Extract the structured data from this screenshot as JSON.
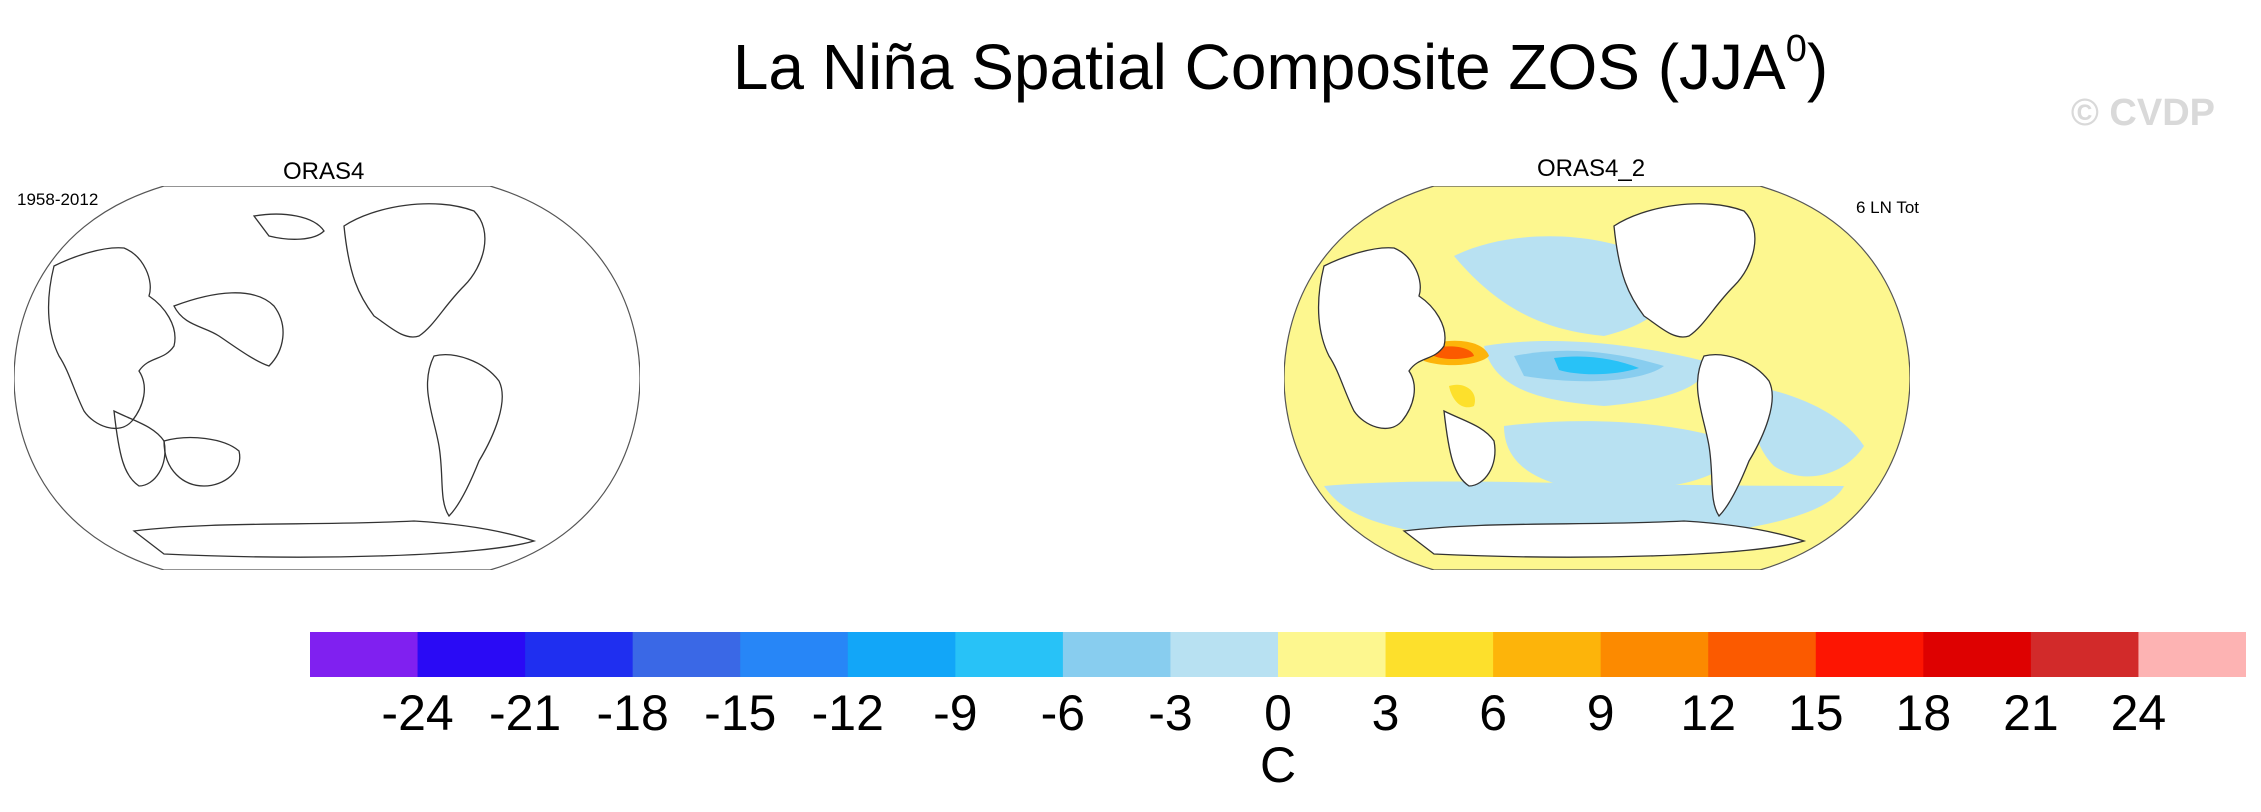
{
  "figure": {
    "title_main": "La Niña Spatial Composite ZOS (JJA",
    "title_sup": "0",
    "title_end": ")",
    "watermark": "© CVDP"
  },
  "panels": [
    {
      "title": "ORAS4",
      "note_left": "1958-2012",
      "note_right": "",
      "has_data": false
    },
    {
      "title": "ORAS4_2",
      "note_left": "",
      "note_right": "6 LN Tot",
      "has_data": true
    }
  ],
  "colorbar": {
    "colors": [
      "#8020f0",
      "#2a0af5",
      "#1f2ff0",
      "#3a68e6",
      "#2786f7",
      "#12a6f8",
      "#28c2f7",
      "#88cdef",
      "#b8e1f2",
      "#fdf78f",
      "#fde02c",
      "#fdb40a",
      "#fc8a00",
      "#fb5a00",
      "#fd1502",
      "#de0101",
      "#d22a2a",
      "#fdb3b3"
    ],
    "tick_labels": [
      "-24",
      "-21",
      "-18",
      "-15",
      "-12",
      "-9",
      "-6",
      "-3",
      "0",
      "3",
      "6",
      "9",
      "12",
      "15",
      "18",
      "21",
      "24"
    ],
    "units": "C"
  }
}
